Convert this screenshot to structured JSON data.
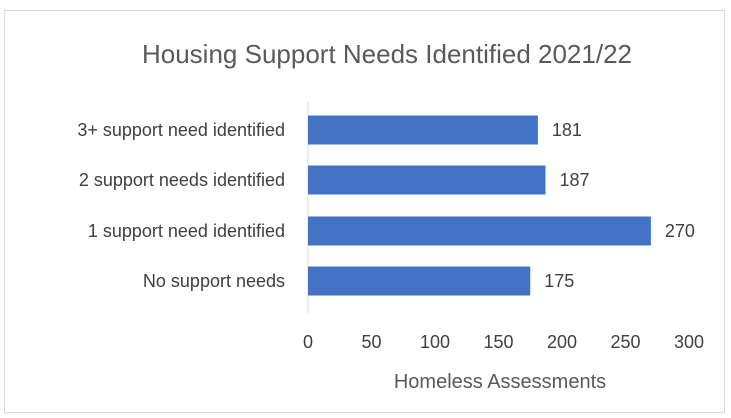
{
  "chart_data": {
    "type": "bar",
    "orientation": "horizontal",
    "title": "Housing Support Needs Identified 2021/22",
    "xlabel": "Homeless Assessments",
    "ylabel": "",
    "categories": [
      "3+ support need identified",
      "2 support needs identified",
      "1 support need identified",
      "No support needs"
    ],
    "values": [
      181,
      187,
      270,
      175
    ],
    "xlim": [
      0,
      300
    ],
    "ticks": [
      "0",
      "50",
      "100",
      "150",
      "200",
      "250",
      "300"
    ],
    "data_labels": [
      "181",
      "187",
      "270",
      "175"
    ],
    "bar_color": "#4472c4",
    "grid": false,
    "legend": false
  }
}
